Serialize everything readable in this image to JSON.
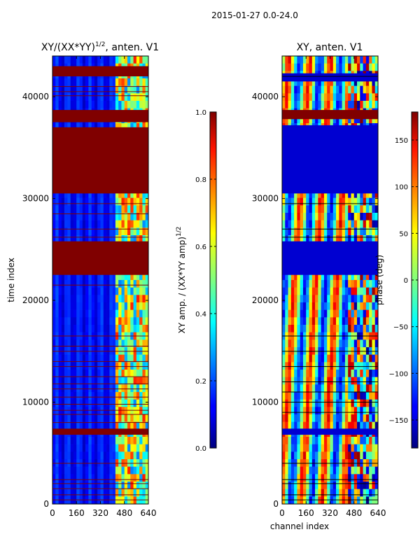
{
  "figure": {
    "suptitle": "2015-01-27 0.0-24.0"
  },
  "chart_data": [
    {
      "type": "heatmap",
      "title": "XY/(XX*YY)",
      "title_power": "1/2",
      "title_suffix": ", anten. V1",
      "xlabel": "",
      "ylabel": "time index",
      "xlim": [
        0,
        640
      ],
      "ylim": [
        0,
        44000
      ],
      "xticks": [
        0,
        160,
        320,
        480,
        640
      ],
      "yticks": [
        0,
        10000,
        20000,
        30000,
        40000
      ],
      "colormap": "jet",
      "colorbar": {
        "label": "XY amp. / (XX*YY amp)",
        "label_power": "1/2",
        "range": [
          0.0,
          1.0
        ],
        "ticks": [
          "0.0",
          "0.2",
          "0.4",
          "0.6",
          "0.8",
          "1.0"
        ]
      },
      "saturated_bands_time_index": [
        [
          42000,
          43000
        ],
        [
          37500,
          38700
        ],
        [
          30500,
          37000
        ],
        [
          22500,
          25800
        ],
        [
          6800,
          7400
        ]
      ],
      "thin_bands_time_index": [
        41000,
        40500,
        40100,
        29500,
        28500,
        27000,
        26200,
        21500,
        16500,
        15500,
        15000,
        14000,
        13500,
        12500,
        11800,
        11300,
        10500,
        9800,
        9200,
        8800,
        8000,
        4000,
        2400,
        2000,
        1500,
        900,
        400
      ],
      "high_amplitude_channel_range": [
        420,
        640
      ],
      "background_value": 0.12
    },
    {
      "type": "heatmap",
      "title": "XY, anten. V1",
      "xlabel": "channel index",
      "ylabel": "",
      "xlim": [
        0,
        640
      ],
      "ylim": [
        0,
        44000
      ],
      "xticks": [
        0,
        160,
        320,
        480,
        640
      ],
      "yticks": [
        0,
        10000,
        20000,
        30000,
        40000
      ],
      "colormap": "jet",
      "colorbar": {
        "label": "phase (deg)",
        "range": [
          -180,
          180
        ],
        "ticks": [
          "−150",
          "−100",
          "−50",
          "0",
          "50",
          "100",
          "150"
        ]
      },
      "saturated_bands_time_index": [
        [
          37800,
          38700
        ]
      ],
      "low_bands_time_index": [
        [
          30500,
          37200
        ],
        [
          22500,
          25800
        ],
        [
          6800,
          7400
        ],
        [
          41500,
          42300
        ]
      ],
      "thin_bands_time_index": [
        42000,
        29500,
        27000,
        26200,
        16500,
        15000,
        13500,
        12000,
        11000,
        10000,
        9000,
        4000,
        2400,
        2000,
        900,
        400
      ],
      "stripe_pattern": "alternating vertical bands across channels"
    }
  ]
}
